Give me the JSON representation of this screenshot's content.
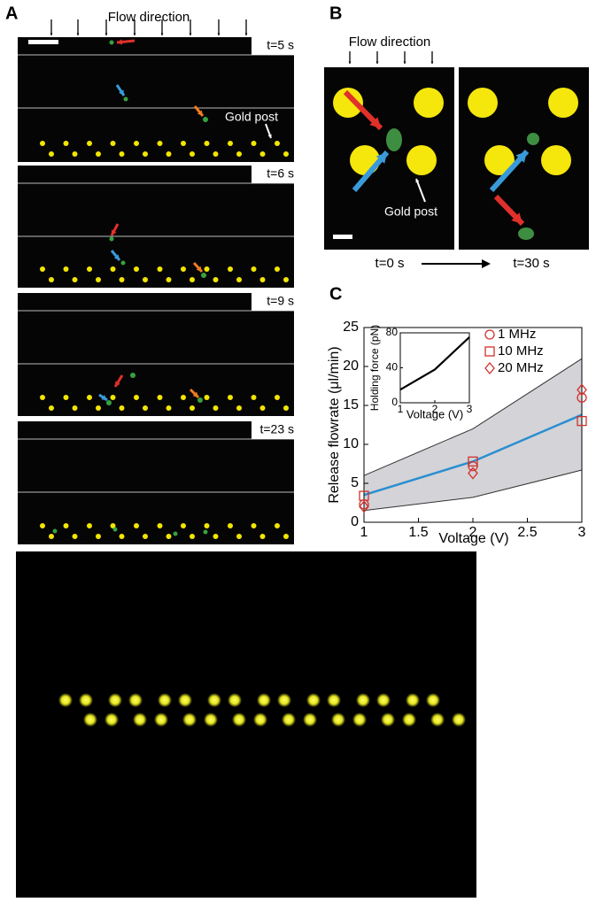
{
  "panel_a": {
    "label": "A",
    "flow_direction": "Flow direction",
    "gold_post": "Gold post",
    "times": [
      "t=5 s",
      "t=6 s",
      "t=9 s",
      "t=23 s"
    ]
  },
  "panel_b": {
    "label": "B",
    "flow_direction": "Flow direction",
    "gold_post": "Gold post",
    "start_time": "t=0 s",
    "end_time": "t=30 s"
  },
  "chart_data": {
    "type": "line",
    "panel_label": "C",
    "x_label": "Voltage (V)",
    "y_label": "Release flowrate (μl/min)",
    "x": [
      1,
      2,
      3
    ],
    "xlim": [
      1,
      3
    ],
    "ylim": [
      0,
      25
    ],
    "xticks": [
      1,
      1.5,
      2,
      2.5,
      3
    ],
    "yticks": [
      0,
      5,
      10,
      15,
      20,
      25
    ],
    "fit": {
      "color": "#2a8fd0",
      "values": [
        3.5,
        7.8,
        13.8
      ]
    },
    "band": {
      "color": "#d3d3d8",
      "upper": [
        6,
        12,
        21
      ],
      "lower": [
        1.5,
        3.2,
        6.7
      ]
    },
    "series": [
      {
        "name": "1 MHz",
        "marker": "circle",
        "color": "#d0312d",
        "values": [
          2.3,
          7.2,
          16
        ]
      },
      {
        "name": "10 MHz",
        "marker": "square",
        "color": "#d0312d",
        "values": [
          3.4,
          7.8,
          13
        ]
      },
      {
        "name": "20 MHz",
        "marker": "diamond",
        "color": "#d0312d",
        "values": [
          2.0,
          6.3,
          17
        ]
      }
    ],
    "inset": {
      "x_label": "Voltage (V)",
      "y_label": "Holding force (pN)",
      "x": [
        1,
        2,
        3
      ],
      "values": [
        15,
        38,
        75
      ],
      "color": "#000000",
      "xlim": [
        1,
        3
      ],
      "ylim": [
        0,
        80
      ],
      "xticks": [
        1,
        2,
        3
      ],
      "yticks": [
        0,
        40,
        80
      ]
    }
  }
}
